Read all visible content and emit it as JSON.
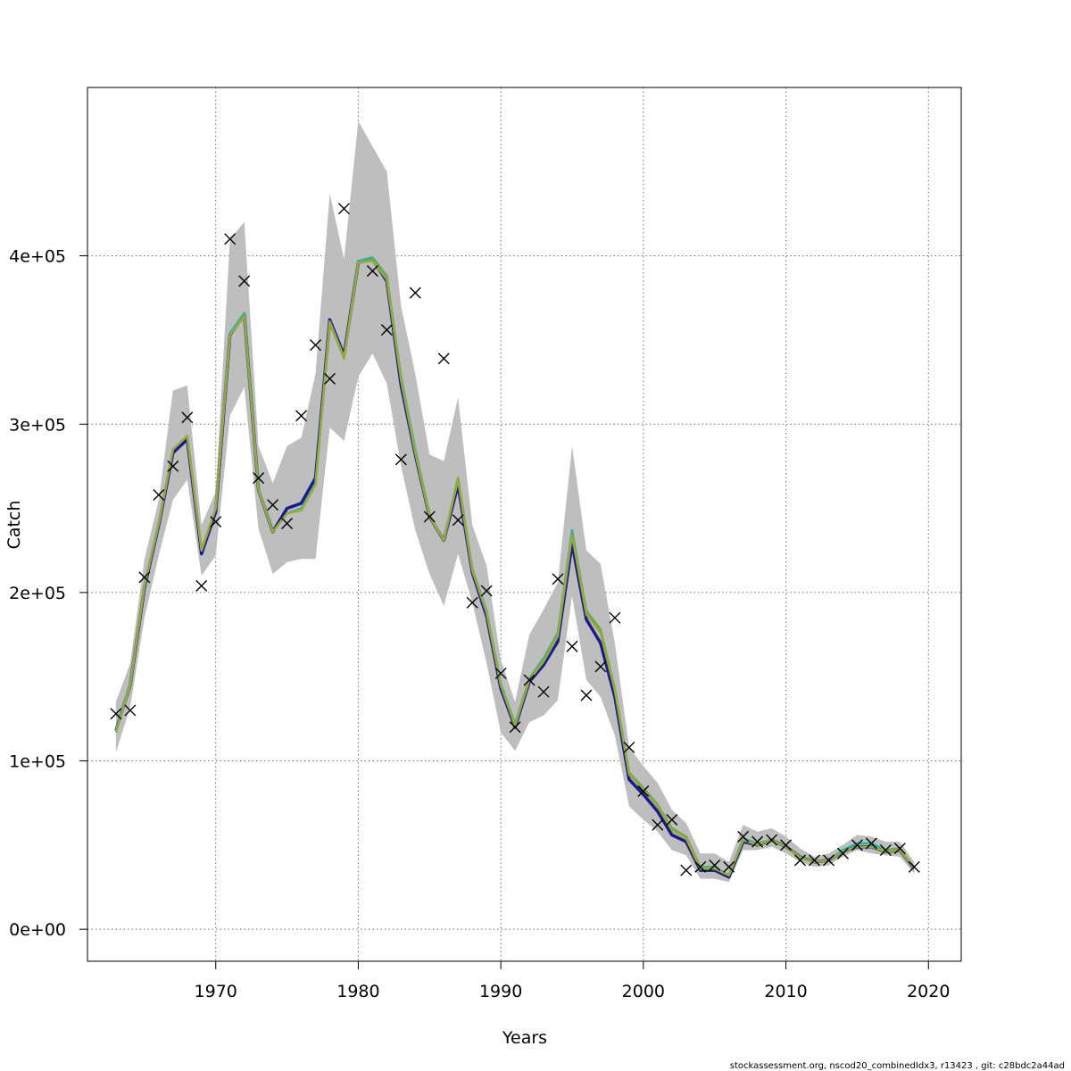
{
  "chart_data": {
    "type": "line",
    "xlabel": "Years",
    "ylabel": "Catch",
    "xlim": [
      1961,
      2022.3
    ],
    "ylim": [
      -19000,
      500000
    ],
    "x_ticks": [
      1970,
      1980,
      1990,
      2000,
      2010,
      2020
    ],
    "x_tick_labels": [
      "1970",
      "1980",
      "1990",
      "2000",
      "2010",
      "2020"
    ],
    "y_ticks": [
      0,
      100000,
      200000,
      300000,
      400000
    ],
    "y_tick_labels": [
      "0e+00",
      "1e+05",
      "2e+05",
      "3e+05",
      "4e+05"
    ],
    "grid": true,
    "years": [
      1963,
      1964,
      1965,
      1966,
      1967,
      1968,
      1969,
      1970,
      1971,
      1972,
      1973,
      1974,
      1975,
      1976,
      1977,
      1978,
      1979,
      1980,
      1981,
      1982,
      1983,
      1984,
      1985,
      1986,
      1987,
      1988,
      1989,
      1990,
      1991,
      1992,
      1993,
      1994,
      1995,
      1996,
      1997,
      1998,
      1999,
      2000,
      2001,
      2002,
      2003,
      2004,
      2005,
      2006,
      2007,
      2008,
      2009,
      2010,
      2011,
      2012,
      2013,
      2014,
      2015,
      2016,
      2017,
      2018,
      2019
    ],
    "confidence_band": {
      "color": "#bebebe",
      "upper": [
        135000,
        158000,
        220000,
        255000,
        320000,
        323000,
        240000,
        260000,
        410000,
        420000,
        287000,
        265000,
        287000,
        292000,
        330000,
        437000,
        398000,
        480000,
        465000,
        450000,
        370000,
        330000,
        282000,
        278000,
        316000,
        240000,
        216000,
        160000,
        135000,
        175000,
        190000,
        206000,
        287000,
        225000,
        217000,
        170000,
        108000,
        97000,
        87000,
        71000,
        63000,
        45000,
        45000,
        40000,
        62000,
        58000,
        60000,
        55000,
        48000,
        43000,
        45000,
        50000,
        56000,
        55000,
        52000,
        52000,
        40000
      ],
      "lower": [
        105000,
        132000,
        185000,
        222000,
        255000,
        267000,
        210000,
        222000,
        305000,
        322000,
        238000,
        211000,
        218000,
        220000,
        220000,
        298000,
        290000,
        328000,
        342000,
        324000,
        275000,
        237000,
        211000,
        192000,
        223000,
        194000,
        158000,
        117000,
        106000,
        123000,
        127000,
        136000,
        198000,
        148000,
        138000,
        115000,
        73000,
        65000,
        58000,
        47000,
        44000,
        30000,
        30000,
        28000,
        47000,
        47000,
        49000,
        45000,
        40000,
        37000,
        38000,
        43000,
        47000,
        45000,
        44000,
        43000,
        33000
      ]
    },
    "series": [
      {
        "color": "#1a1a8c",
        "values": [
          118000,
          145000,
          203000,
          240000,
          283000,
          291000,
          223000,
          248000,
          353000,
          365000,
          261000,
          236000,
          250000,
          253000,
          268000,
          362000,
          341000,
          396000,
          398000,
          385000,
          323000,
          282000,
          245000,
          231000,
          264000,
          212000,
          186000,
          143000,
          120000,
          147000,
          157000,
          171000,
          229000,
          184000,
          170000,
          138000,
          89000,
          80000,
          70000,
          56000,
          52000,
          35000,
          35000,
          31000,
          52000,
          50000,
          53000,
          49000,
          43000,
          40000,
          41000,
          46000,
          49000,
          49000,
          46000,
          47000,
          36000
        ]
      },
      {
        "color": "#22b2aa",
        "values": [
          118000,
          146000,
          204000,
          241000,
          285000,
          293000,
          225000,
          250000,
          354000,
          366000,
          262000,
          236000,
          247000,
          250000,
          265000,
          361000,
          339000,
          397000,
          399000,
          388000,
          328000,
          285000,
          246000,
          231000,
          268000,
          214000,
          189000,
          146000,
          122000,
          149000,
          161000,
          176000,
          237000,
          188000,
          177000,
          142000,
          92000,
          83000,
          73000,
          59000,
          54000,
          37000,
          37000,
          32000,
          54000,
          51000,
          53000,
          49000,
          43000,
          40000,
          41000,
          47000,
          51000,
          51000,
          47000,
          48000,
          36000
        ]
      },
      {
        "color": "#6aa84f",
        "values": [
          117000,
          145000,
          204000,
          241000,
          285000,
          293000,
          225000,
          250000,
          353000,
          365000,
          261000,
          236000,
          247000,
          249000,
          264000,
          361000,
          340000,
          396000,
          398000,
          388000,
          327000,
          284000,
          246000,
          231000,
          268000,
          214000,
          188000,
          145000,
          121000,
          149000,
          160000,
          175000,
          235000,
          189000,
          178000,
          143000,
          93000,
          84000,
          74000,
          60000,
          55000,
          37000,
          36000,
          32000,
          53000,
          51000,
          53000,
          49000,
          43000,
          40000,
          41000,
          46000,
          49000,
          49000,
          47000,
          48000,
          36000
        ]
      },
      {
        "color": "#9aaa3a",
        "values": [
          117000,
          145000,
          204000,
          241000,
          285000,
          293000,
          225000,
          250000,
          353000,
          364000,
          261000,
          236000,
          247000,
          249000,
          264000,
          360000,
          339000,
          396000,
          397000,
          386000,
          326000,
          283000,
          245000,
          231000,
          267000,
          213000,
          188000,
          145000,
          121000,
          148000,
          159000,
          174000,
          234000,
          187000,
          176000,
          142000,
          92000,
          83000,
          73000,
          59000,
          54000,
          36000,
          36000,
          32000,
          53000,
          50000,
          53000,
          49000,
          42000,
          40000,
          41000,
          46000,
          49000,
          49000,
          46000,
          47000,
          36000
        ]
      }
    ],
    "observed": {
      "marker": "x",
      "values": [
        128000,
        130000,
        209000,
        258000,
        275000,
        304000,
        204000,
        242000,
        410000,
        385000,
        268000,
        252000,
        241000,
        305000,
        347000,
        327000,
        428000,
        null,
        391000,
        356000,
        279000,
        378000,
        245000,
        339000,
        243000,
        194000,
        201000,
        152000,
        120000,
        148000,
        141000,
        208000,
        168000,
        139000,
        156000,
        185000,
        108000,
        82000,
        62000,
        65000,
        35000,
        37000,
        38000,
        37000,
        55000,
        52000,
        53000,
        50000,
        41000,
        41000,
        41000,
        45000,
        50000,
        51000,
        47000,
        48000,
        37000
      ]
    },
    "footer": "stockassessment.org, nscod20_combinedIdx3, r13423 , git: c28bdc2a44ad"
  }
}
